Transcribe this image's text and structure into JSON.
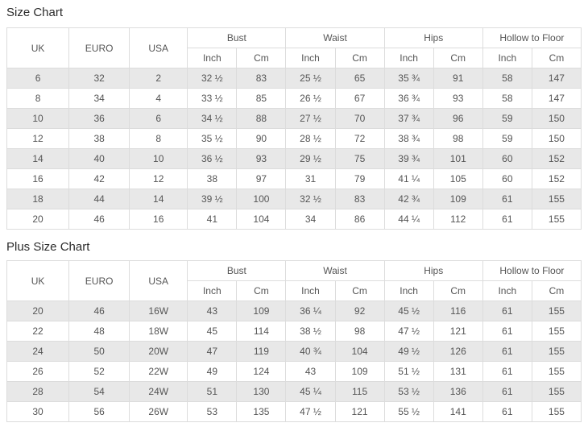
{
  "tables": [
    {
      "title": "Size Chart",
      "headers": {
        "uk": "UK",
        "euro": "EURO",
        "usa": "USA",
        "bust": "Bust",
        "waist": "Waist",
        "hips": "Hips",
        "hollow_to_floor": "Hollow to Floor",
        "inch": "Inch",
        "cm": "Cm"
      },
      "rows": [
        [
          "6",
          "32",
          "2",
          "32 ½",
          "83",
          "25 ½",
          "65",
          "35 ¾",
          "91",
          "58",
          "147"
        ],
        [
          "8",
          "34",
          "4",
          "33 ½",
          "85",
          "26 ½",
          "67",
          "36 ¾",
          "93",
          "58",
          "147"
        ],
        [
          "10",
          "36",
          "6",
          "34 ½",
          "88",
          "27 ½",
          "70",
          "37 ¾",
          "96",
          "59",
          "150"
        ],
        [
          "12",
          "38",
          "8",
          "35 ½",
          "90",
          "28 ½",
          "72",
          "38 ¾",
          "98",
          "59",
          "150"
        ],
        [
          "14",
          "40",
          "10",
          "36 ½",
          "93",
          "29 ½",
          "75",
          "39 ¾",
          "101",
          "60",
          "152"
        ],
        [
          "16",
          "42",
          "12",
          "38",
          "97",
          "31",
          "79",
          "41 ¼",
          "105",
          "60",
          "152"
        ],
        [
          "18",
          "44",
          "14",
          "39 ½",
          "100",
          "32 ½",
          "83",
          "42 ¾",
          "109",
          "61",
          "155"
        ],
        [
          "20",
          "46",
          "16",
          "41",
          "104",
          "34",
          "86",
          "44 ¼",
          "112",
          "61",
          "155"
        ]
      ]
    },
    {
      "title": "Plus Size Chart",
      "headers": {
        "uk": "UK",
        "euro": "EURO",
        "usa": "USA",
        "bust": "Bust",
        "waist": "Waist",
        "hips": "Hips",
        "hollow_to_floor": "Hollow to Floor",
        "inch": "Inch",
        "cm": "Cm"
      },
      "rows": [
        [
          "20",
          "46",
          "16W",
          "43",
          "109",
          "36 ¼",
          "92",
          "45 ½",
          "116",
          "61",
          "155"
        ],
        [
          "22",
          "48",
          "18W",
          "45",
          "114",
          "38 ½",
          "98",
          "47 ½",
          "121",
          "61",
          "155"
        ],
        [
          "24",
          "50",
          "20W",
          "47",
          "119",
          "40 ¾",
          "104",
          "49 ½",
          "126",
          "61",
          "155"
        ],
        [
          "26",
          "52",
          "22W",
          "49",
          "124",
          "43",
          "109",
          "51 ½",
          "131",
          "61",
          "155"
        ],
        [
          "28",
          "54",
          "24W",
          "51",
          "130",
          "45 ¼",
          "115",
          "53 ½",
          "136",
          "61",
          "155"
        ],
        [
          "30",
          "56",
          "26W",
          "53",
          "135",
          "47 ½",
          "121",
          "55 ½",
          "141",
          "61",
          "155"
        ]
      ]
    }
  ],
  "colors": {
    "row_stripe": "#e8e8e8",
    "border": "#dcdcdc",
    "cell_text": "#555555",
    "title_text": "#2b2b2b"
  }
}
